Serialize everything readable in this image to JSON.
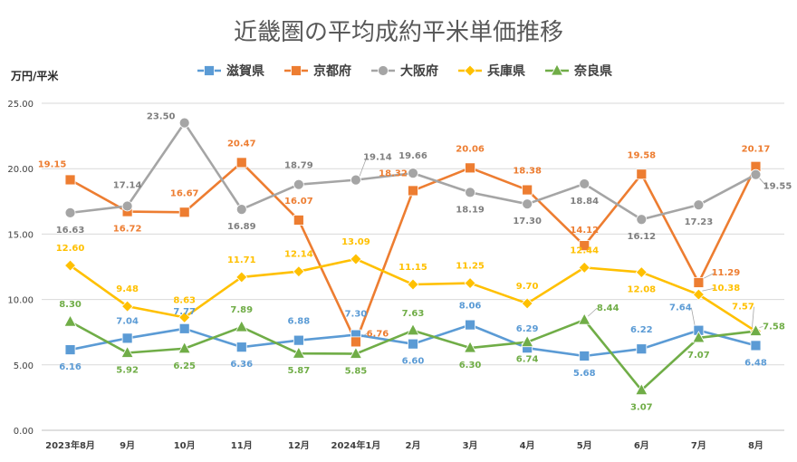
{
  "chart_data": {
    "type": "line",
    "title": "近畿圏の平均成約平米単価推移",
    "ylabel": "万円/平米",
    "xlabel": "",
    "ylim": [
      0,
      25
    ],
    "yticks": [
      "0.00",
      "5.00",
      "10.00",
      "15.00",
      "20.00",
      "25.00"
    ],
    "grid": true,
    "legend_position": "top",
    "categories": [
      "2023年8月",
      "9月",
      "10月",
      "11月",
      "12月",
      "2024年1月",
      "2月",
      "3月",
      "4月",
      "5月",
      "6月",
      "7月",
      "8月"
    ],
    "series": [
      {
        "name": "滋賀県",
        "color": "#5B9BD5",
        "marker": "square",
        "values": [
          6.16,
          7.04,
          7.77,
          6.36,
          6.88,
          7.3,
          6.6,
          8.06,
          6.29,
          5.68,
          6.22,
          7.64,
          6.48
        ],
        "labels": [
          "6.16",
          "7.04",
          "7.77",
          "6.36",
          "6.88",
          "7.30",
          "6.60",
          "8.06",
          "6.29",
          "5.68",
          "6.22",
          "7.64",
          "6.48"
        ]
      },
      {
        "name": "京都府",
        "color": "#ED7D31",
        "marker": "square",
        "values": [
          19.15,
          16.72,
          16.67,
          20.47,
          16.07,
          6.76,
          18.32,
          20.06,
          18.38,
          14.12,
          19.58,
          11.29,
          20.17
        ],
        "labels": [
          "19.15",
          "16.72",
          "16.67",
          "20.47",
          "16.07",
          "6.76",
          "18.32",
          "20.06",
          "18.38",
          "14.12",
          "19.58",
          "11.29",
          "20.17"
        ]
      },
      {
        "name": "大阪府",
        "color": "#A5A5A5",
        "marker": "circle",
        "values": [
          16.63,
          17.14,
          23.5,
          16.89,
          18.79,
          19.14,
          19.66,
          18.19,
          17.3,
          18.84,
          16.12,
          17.23,
          19.55
        ],
        "labels": [
          "16.63",
          "17.14",
          "23.50",
          "16.89",
          "18.79",
          "19.14",
          "19.66",
          "18.19",
          "17.30",
          "18.84",
          "16.12",
          "17.23",
          "19.55"
        ]
      },
      {
        "name": "兵庫県",
        "color": "#FFC000",
        "marker": "diamond",
        "values": [
          12.6,
          9.48,
          8.63,
          11.71,
          12.14,
          13.09,
          11.15,
          11.25,
          9.7,
          12.44,
          12.08,
          10.38,
          7.57
        ],
        "labels": [
          "12.60",
          "9.48",
          "8.63",
          "11.71",
          "12.14",
          "13.09",
          "11.15",
          "11.25",
          "9.70",
          "12.44",
          "12.08",
          "10.38",
          "7.57"
        ]
      },
      {
        "name": "奈良県",
        "color": "#70AD47",
        "marker": "triangle",
        "values": [
          8.3,
          5.92,
          6.25,
          7.89,
          5.87,
          5.85,
          7.63,
          6.3,
          6.74,
          8.44,
          3.07,
          7.07,
          7.58
        ],
        "labels": [
          "8.30",
          "5.92",
          "6.25",
          "7.89",
          "5.87",
          "5.85",
          "7.63",
          "6.30",
          "6.74",
          "8.44",
          "3.07",
          "7.07",
          "7.58"
        ]
      }
    ]
  }
}
